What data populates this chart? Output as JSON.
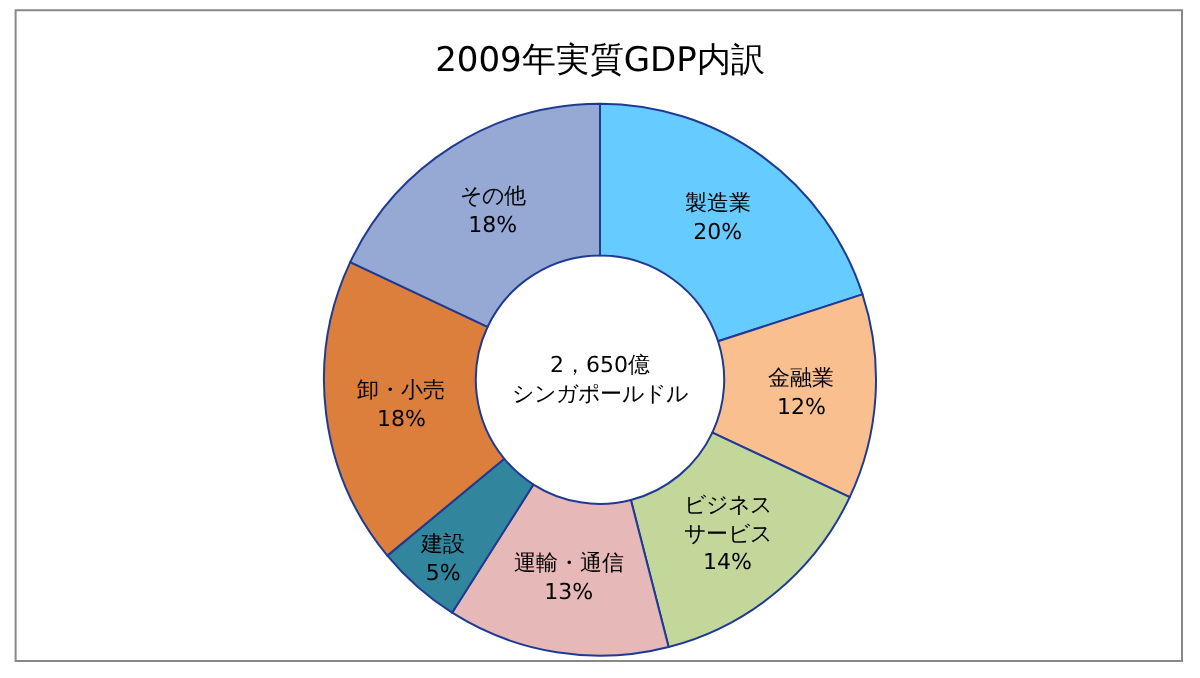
{
  "chart_data": {
    "type": "donut",
    "title": "2009年実質GDP内訳",
    "categories": [
      "製造業",
      "金融業",
      "ビジネスサービス",
      "運輸・通信",
      "建設",
      "卸・小売",
      "その他"
    ],
    "values": [
      20,
      12,
      14,
      13,
      5,
      18,
      18
    ],
    "value_labels": [
      "20%",
      "12%",
      "14%",
      "13%",
      "5%",
      "18%",
      "18%"
    ],
    "colors": [
      "#66ccff",
      "#f9bf8f",
      "#c4d79b",
      "#e6b8b7",
      "#31859c",
      "#dd7f3c",
      "#95a9d4"
    ],
    "annotations": [
      "2，650億シンガポールドル"
    ],
    "legend": false
  }
}
